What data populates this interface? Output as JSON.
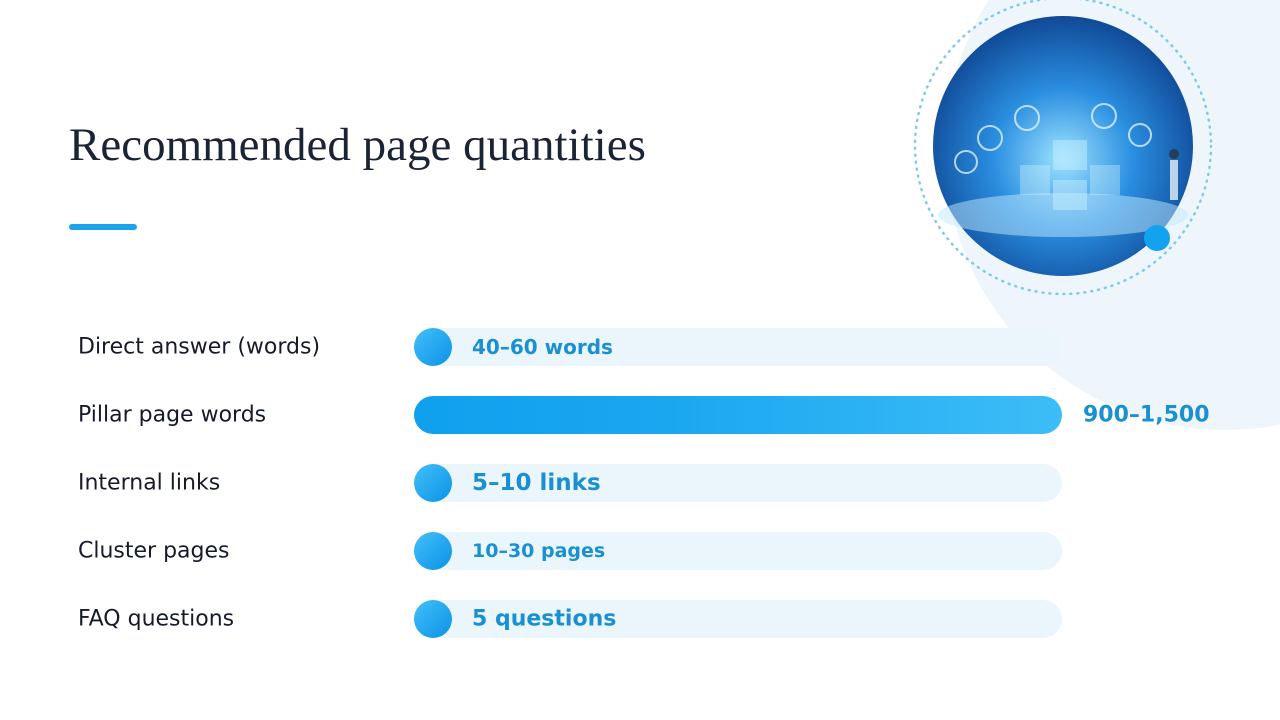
{
  "title": "Recommended page quantities",
  "rows": [
    {
      "label": "Direct answer (words)",
      "value": "40–60 words"
    },
    {
      "label": "Pillar page words",
      "value": "900–1,500"
    },
    {
      "label": "Internal links",
      "value": "5–10 links"
    },
    {
      "label": "Cluster pages",
      "value": "10–30 pages"
    },
    {
      "label": "FAQ questions",
      "value": "5 questions"
    }
  ]
}
